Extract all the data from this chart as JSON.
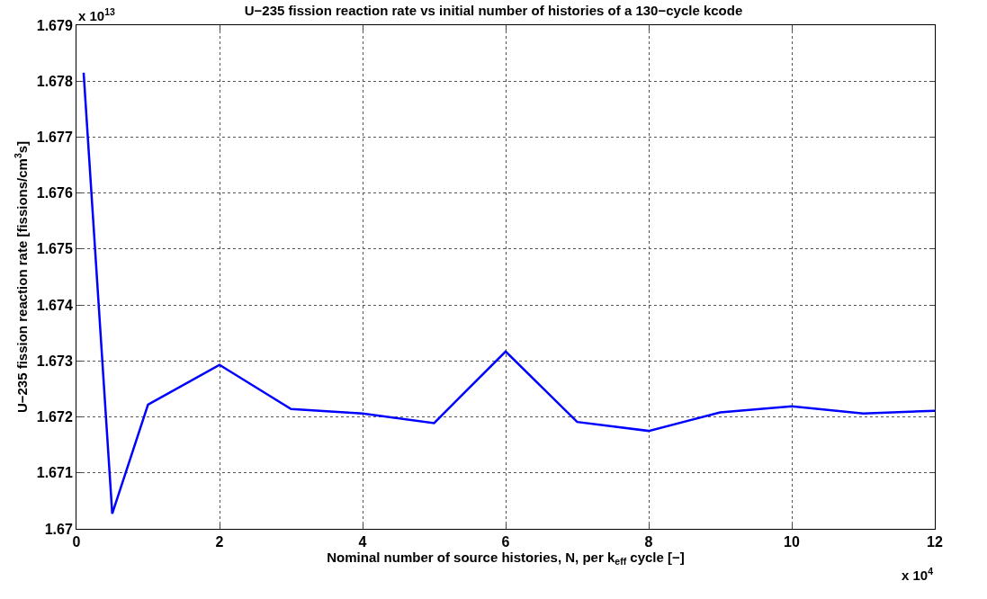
{
  "chart_data": {
    "type": "line",
    "title": "U−235 fission reaction rate vs initial number of histories of a 130−cycle kcode",
    "xlabel": "Nominal number of source histories, N, per k$_{eff}$ cycle [−]",
    "ylabel": "U−235 fission reaction rate [fissions/cm$^{3}$s]",
    "x": [
      0.1,
      0.5,
      1,
      2,
      3,
      4,
      5,
      6,
      7,
      8,
      9,
      10,
      11,
      12
    ],
    "series": [
      {
        "color": "#0000ff",
        "values": [
          1.67815,
          1.67027,
          1.67222,
          1.67293,
          1.67214,
          1.67206,
          1.67189,
          1.67317,
          1.67191,
          1.67175,
          1.67208,
          1.67219,
          1.67206,
          1.67211
        ]
      }
    ],
    "xlim": [
      0,
      12
    ],
    "xticks": [
      0,
      2,
      4,
      6,
      8,
      10,
      12
    ],
    "ylim": [
      1.67,
      1.679
    ],
    "yticks": [
      1.67,
      1.671,
      1.672,
      1.673,
      1.674,
      1.675,
      1.676,
      1.677,
      1.678,
      1.679
    ],
    "annotations": [
      "x 10$^{13}$",
      "x 10$^{4}$"
    ],
    "grid": true,
    "marker": "none",
    "line_style": "solid"
  }
}
